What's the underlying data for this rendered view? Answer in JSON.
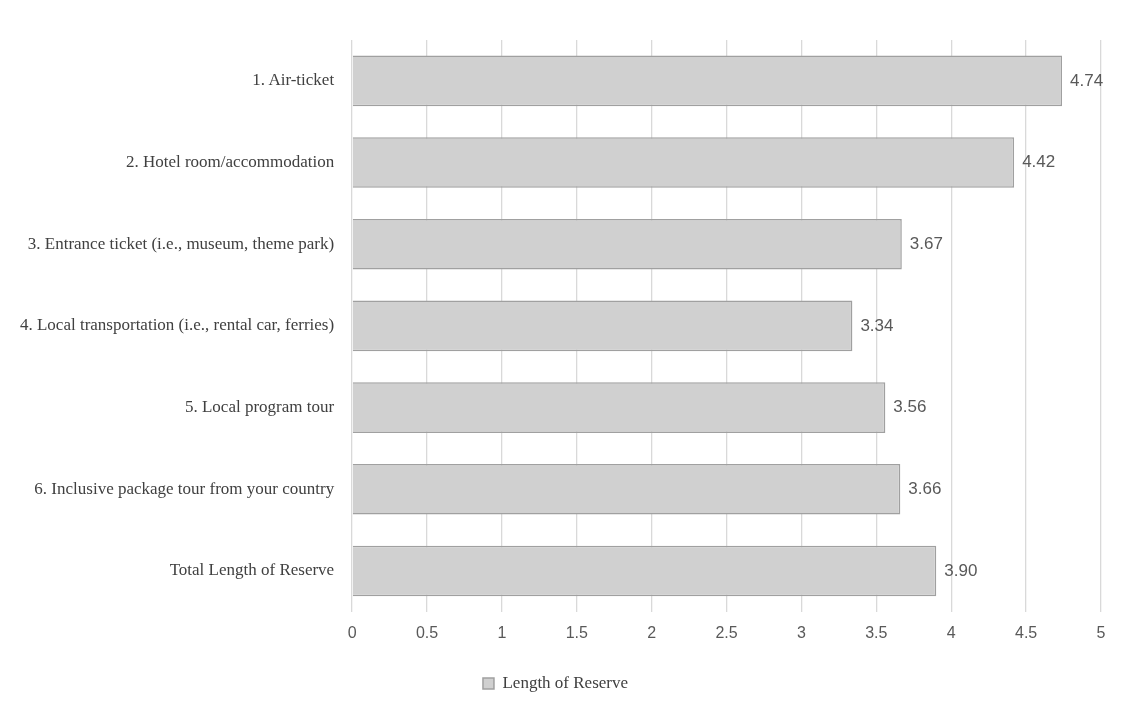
{
  "chart_data": {
    "type": "bar",
    "orientation": "horizontal",
    "categories": [
      "1. Air-ticket",
      "2. Hotel room/accommodation",
      "3. Entrance ticket (i.e., museum, theme park)",
      "4. Local transportation (i.e., rental car, ferries)",
      "5. Local program tour",
      "6. Inclusive package tour from your country",
      "Total Length of Reserve"
    ],
    "series": [
      {
        "name": "Length of Reserve",
        "color": "#d0d0d0",
        "values": [
          4.74,
          4.42,
          3.67,
          3.34,
          3.56,
          3.66,
          3.9
        ],
        "value_labels": [
          "4.74",
          "4.42",
          "3.67",
          "3.34",
          "3.56",
          "3.66",
          "3.90"
        ]
      }
    ],
    "xlim": [
      0,
      5
    ],
    "xticks": [
      0,
      0.5,
      1,
      1.5,
      2,
      2.5,
      3,
      3.5,
      4,
      4.5,
      5
    ],
    "grid": "x",
    "legend": "bottom"
  }
}
